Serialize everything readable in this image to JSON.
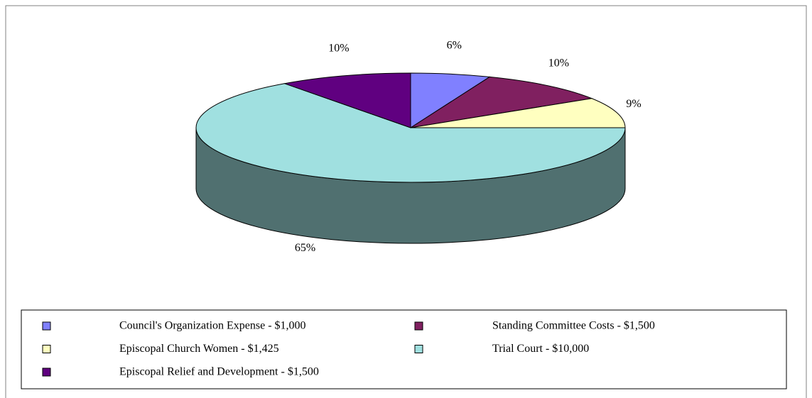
{
  "chart_data": {
    "type": "pie",
    "categories": [
      "Council's Organization Expense - $1,000",
      "Standing Committee Costs - $1,500",
      "Episcopal Church Women - $1,425",
      "Trial Court - $10,000",
      "Episcopal Relief and Development - $1,500"
    ],
    "values": [
      6,
      10,
      9,
      65,
      10
    ],
    "value_labels": [
      "6%",
      "10%",
      "9%",
      "65%",
      "10%"
    ],
    "colors": [
      "#8080ff",
      "#802060",
      "#ffffc0",
      "#a0e0e0",
      "#600080"
    ],
    "legend": "bottom"
  }
}
